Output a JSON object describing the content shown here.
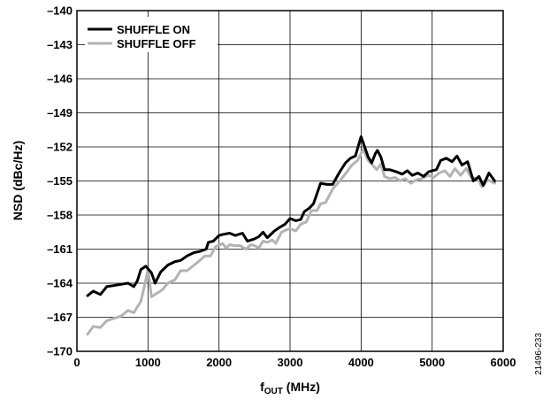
{
  "chart_data": {
    "type": "line",
    "xlabel": {
      "main": "f",
      "sub": "OUT",
      "unit": " (MHz)"
    },
    "ylabel": "NSD (dBc/Hz)",
    "xlim": [
      0,
      6000
    ],
    "ylim": [
      -170,
      -140
    ],
    "x_ticks": [
      0,
      1000,
      2000,
      3000,
      4000,
      5000,
      6000
    ],
    "x_tick_labels": [
      "0",
      "1000",
      "2000",
      "3000",
      "4000",
      "5000",
      "6000"
    ],
    "y_ticks": [
      -140,
      -143,
      -146,
      -149,
      -152,
      -155,
      -158,
      -161,
      -164,
      -167,
      -170
    ],
    "y_tick_labels": [
      "–140",
      "–143",
      "–146",
      "–149",
      "–152",
      "–155",
      "–158",
      "–161",
      "–164",
      "–167",
      "–170"
    ],
    "grid": true,
    "legend_position": "top-left",
    "figure_code": "21496-233",
    "series": [
      {
        "name": "SHUFFLE ON",
        "color": "#000000",
        "x": [
          150,
          230,
          330,
          420,
          520,
          620,
          720,
          800,
          850,
          900,
          970,
          1050,
          1100,
          1180,
          1280,
          1380,
          1460,
          1550,
          1650,
          1730,
          1820,
          1850,
          1920,
          2000,
          2060,
          2150,
          2230,
          2330,
          2400,
          2500,
          2560,
          2620,
          2680,
          2780,
          2850,
          2930,
          3000,
          3080,
          3150,
          3200,
          3270,
          3330,
          3430,
          3520,
          3600,
          3700,
          3780,
          3850,
          3920,
          4000,
          4050,
          4100,
          4150,
          4200,
          4230,
          4280,
          4330,
          4400,
          4500,
          4580,
          4650,
          4720,
          4800,
          4880,
          4950,
          5000,
          5060,
          5120,
          5200,
          5280,
          5350,
          5420,
          5500,
          5580,
          5660,
          5720,
          5800,
          5880
        ],
        "y": [
          -165.1,
          -164.7,
          -165.0,
          -164.3,
          -164.2,
          -164.1,
          -164.0,
          -164.3,
          -163.8,
          -162.8,
          -162.5,
          -163.1,
          -164.0,
          -163.0,
          -162.4,
          -162.1,
          -162.0,
          -161.6,
          -161.3,
          -161.2,
          -161.0,
          -160.4,
          -160.3,
          -159.8,
          -159.7,
          -159.6,
          -159.8,
          -159.6,
          -160.3,
          -160.1,
          -159.9,
          -159.5,
          -160.0,
          -159.4,
          -159.1,
          -158.8,
          -158.3,
          -158.5,
          -158.4,
          -157.7,
          -157.4,
          -157.0,
          -155.2,
          -155.3,
          -155.3,
          -154.2,
          -153.4,
          -153.0,
          -152.8,
          -151.1,
          -152.0,
          -152.9,
          -153.4,
          -152.6,
          -152.3,
          -152.9,
          -154.0,
          -154.0,
          -154.2,
          -154.4,
          -154.1,
          -154.5,
          -154.3,
          -154.6,
          -154.2,
          -154.1,
          -154.0,
          -153.2,
          -153.0,
          -153.3,
          -152.8,
          -153.6,
          -153.3,
          -155.0,
          -154.6,
          -155.4,
          -154.3,
          -155.0
        ]
      },
      {
        "name": "SHUFFLE OFF",
        "color": "#b3b3b3",
        "x": [
          150,
          230,
          330,
          420,
          520,
          620,
          720,
          800,
          850,
          900,
          960,
          1000,
          1050,
          1120,
          1200,
          1280,
          1380,
          1460,
          1550,
          1650,
          1730,
          1800,
          1880,
          1950,
          2050,
          2100,
          2150,
          2220,
          2300,
          2380,
          2450,
          2500,
          2560,
          2620,
          2680,
          2750,
          2800,
          2880,
          2950,
          3000,
          3080,
          3150,
          3230,
          3300,
          3380,
          3430,
          3500,
          3600,
          3700,
          3800,
          3870,
          3950,
          4030,
          4100,
          4160,
          4220,
          4280,
          4330,
          4400,
          4480,
          4550,
          4620,
          4700,
          4780,
          4850,
          4950,
          5020,
          5100,
          5180,
          5250,
          5320,
          5400,
          5480,
          5550,
          5640,
          5700,
          5780,
          5880
        ],
        "y": [
          -168.5,
          -167.8,
          -167.9,
          -167.3,
          -167.1,
          -166.9,
          -166.4,
          -166.6,
          -166.1,
          -165.6,
          -164.0,
          -162.8,
          -165.2,
          -164.9,
          -164.6,
          -164.0,
          -163.7,
          -162.9,
          -162.9,
          -162.4,
          -162.0,
          -161.6,
          -161.6,
          -160.8,
          -160.5,
          -160.9,
          -160.6,
          -160.7,
          -160.7,
          -161.0,
          -160.6,
          -160.7,
          -160.9,
          -160.3,
          -160.4,
          -160.2,
          -160.5,
          -159.5,
          -159.3,
          -159.2,
          -159.4,
          -158.8,
          -158.6,
          -157.6,
          -157.6,
          -157.0,
          -156.9,
          -155.7,
          -155.0,
          -154.2,
          -153.6,
          -153.2,
          -152.2,
          -153.2,
          -153.6,
          -154.0,
          -153.5,
          -154.6,
          -154.8,
          -154.7,
          -155.0,
          -154.8,
          -155.2,
          -154.9,
          -154.8,
          -154.5,
          -154.7,
          -154.3,
          -154.1,
          -154.6,
          -153.9,
          -154.5,
          -153.9,
          -154.7,
          -154.8,
          -155.5,
          -154.9,
          -155.2
        ]
      }
    ]
  }
}
